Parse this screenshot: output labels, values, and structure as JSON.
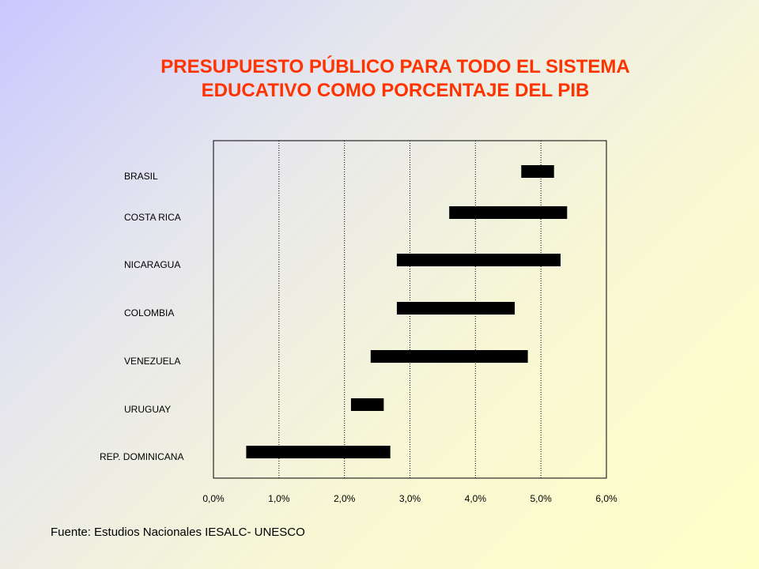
{
  "title": {
    "line1": "PRESUPUESTO PÚBLICO PARA TODO EL SISTEMA",
    "line2": "EDUCATIVO COMO PORCENTAJE DEL PIB"
  },
  "source": "Fuente: Estudios Nacionales IESALC- UNESCO",
  "colors": {
    "title": "#ff3300",
    "bar": "#000000"
  },
  "chart_data": {
    "type": "bar",
    "orientation": "horizontal-range",
    "categories": [
      "BRASIL",
      "COSTA RICA",
      "NICARAGUA",
      "COLOMBIA",
      "VENEZUELA",
      "URUGUAY",
      "REP. DOMINICANA"
    ],
    "series": [
      {
        "values": [
          [
            4.7,
            5.2
          ],
          [
            3.6,
            5.4
          ],
          [
            2.8,
            5.3
          ],
          [
            2.8,
            4.6
          ],
          [
            2.4,
            4.8
          ],
          [
            2.1,
            2.6
          ],
          [
            0.5,
            2.7
          ]
        ]
      }
    ],
    "xticks": [
      "0,0%",
      "1,0%",
      "2,0%",
      "3,0%",
      "4,0%",
      "5,0%",
      "6,0%"
    ],
    "xlim": [
      0,
      6
    ],
    "grid": "vertical dotted",
    "legend": "none"
  }
}
